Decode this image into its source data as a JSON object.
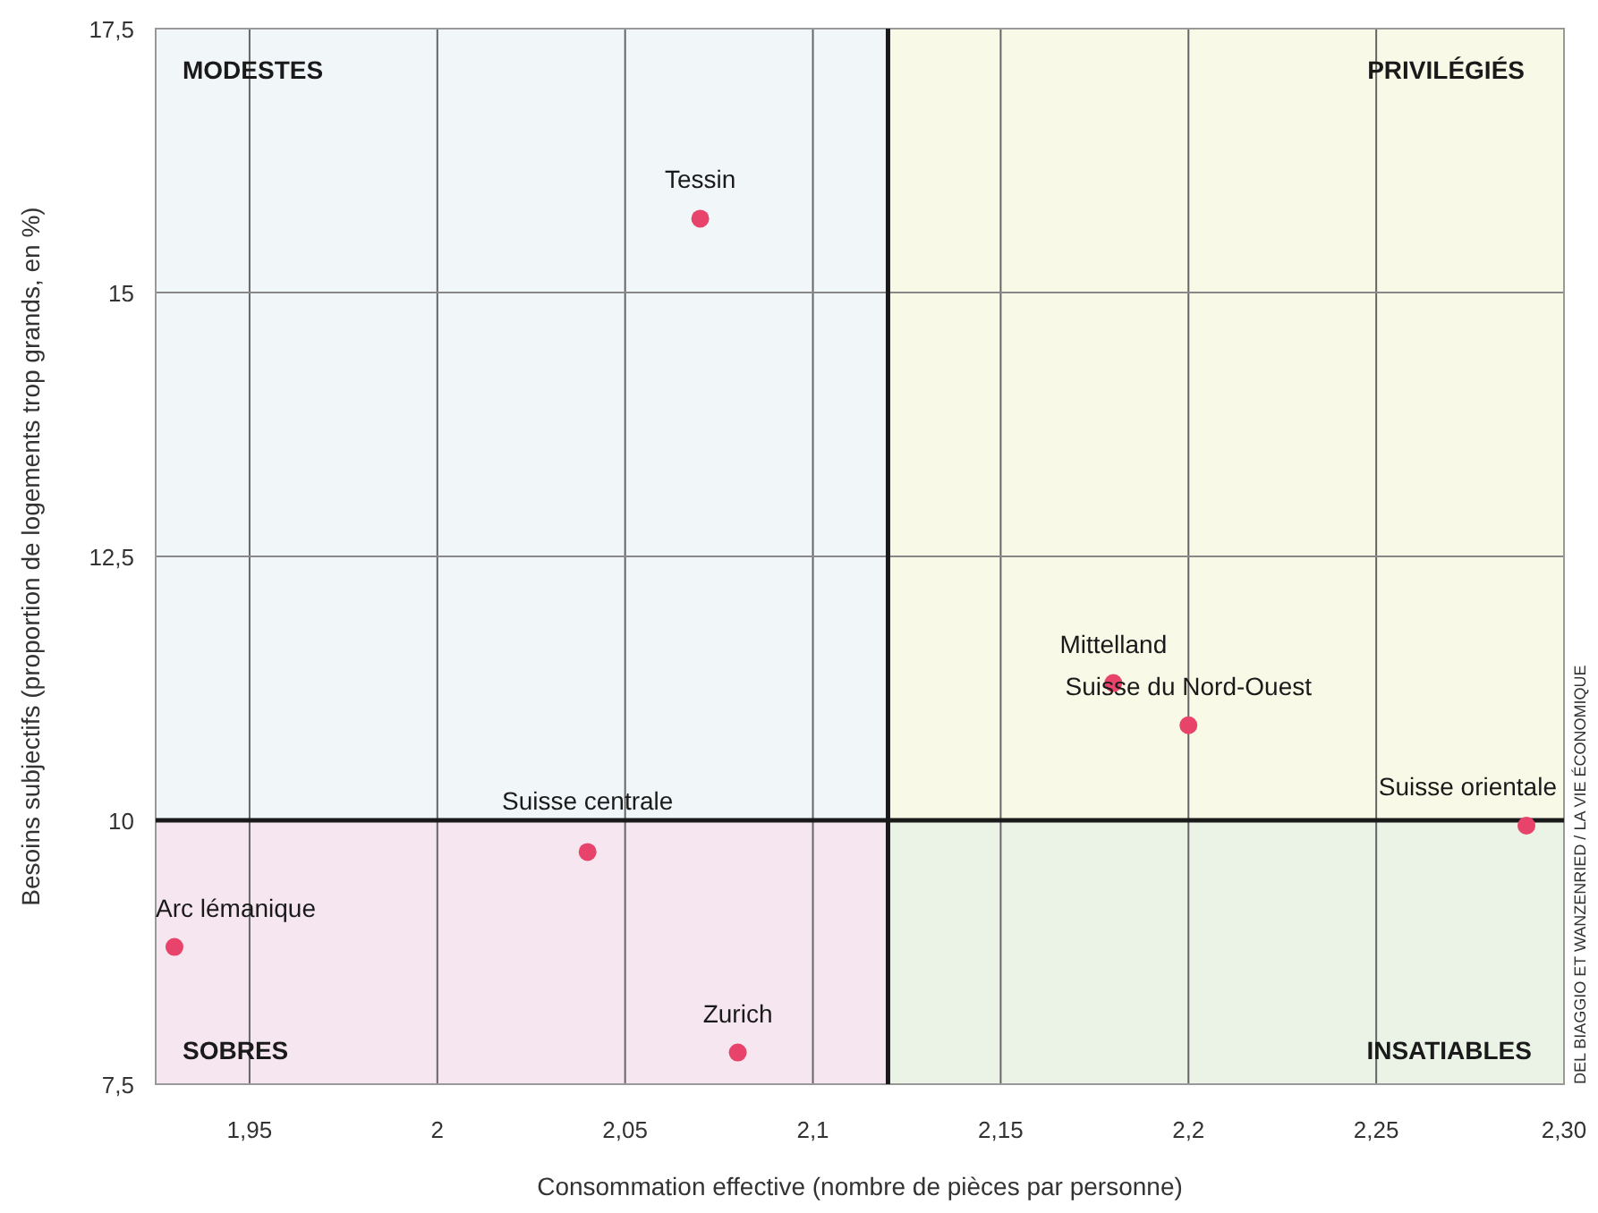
{
  "chart_data": {
    "type": "scatter",
    "xlabel": "Consommation effective (nombre de pièces par personne)",
    "ylabel": "Besoins subjectifs (proportion de logements trop grands, en %)",
    "xlim": [
      1.925,
      2.3
    ],
    "xticks": [
      {
        "value": 1.95,
        "label": "1,95"
      },
      2,
      {
        "value": 2.05,
        "label": "2,05"
      },
      {
        "value": 2.1,
        "label": "2,1"
      },
      {
        "value": 2.15,
        "label": "2,15"
      },
      {
        "value": 2.2,
        "label": "2,2"
      },
      {
        "value": 2.25,
        "label": "2,25"
      },
      {
        "value": 2.3,
        "label": "2,30"
      }
    ],
    "ylim": [
      7.5,
      17.5
    ],
    "yticks": [
      {
        "value": 7.5,
        "label": "7,5"
      },
      10,
      {
        "value": 12.5,
        "label": "12,5"
      },
      15,
      {
        "value": 17.5,
        "label": "17,5"
      }
    ],
    "grid": true,
    "marker": "circle",
    "ref_lines": [
      {
        "axis": "x",
        "value": 2.12,
        "color": "#1a1a1a"
      },
      {
        "axis": "y",
        "value": 10,
        "color": "#1a1a1a"
      }
    ],
    "series": [
      {
        "name": "Tessin",
        "color": "#e8436a",
        "x": [
          2.07
        ],
        "values": [
          15.7
        ]
      },
      {
        "name": "Mittelland",
        "color": "#e8436a",
        "x": [
          2.18
        ],
        "values": [
          11.3
        ]
      },
      {
        "name": "Suisse du Nord-Ouest",
        "color": "#e8436a",
        "x": [
          2.2
        ],
        "values": [
          10.9
        ]
      },
      {
        "name": "Suisse orientale",
        "color": "#e8436a",
        "x": [
          2.29
        ],
        "values": [
          9.95
        ]
      },
      {
        "name": "Suisse centrale",
        "color": "#e8436a",
        "x": [
          2.04
        ],
        "values": [
          9.7
        ]
      },
      {
        "name": "Arc lémanique",
        "color": "#e8436a",
        "x": [
          1.93
        ],
        "values": [
          8.8
        ]
      },
      {
        "name": "Zurich",
        "color": "#e8436a",
        "x": [
          2.08
        ],
        "values": [
          7.8
        ]
      }
    ],
    "annotations": [
      "MODESTES",
      "PRIVILÉGIÉS",
      "SOBRES",
      "INSATIABLES",
      "DEL BIAGGIO ET WANZENRIED / LA VIE ÉCONOMIQUE"
    ]
  }
}
